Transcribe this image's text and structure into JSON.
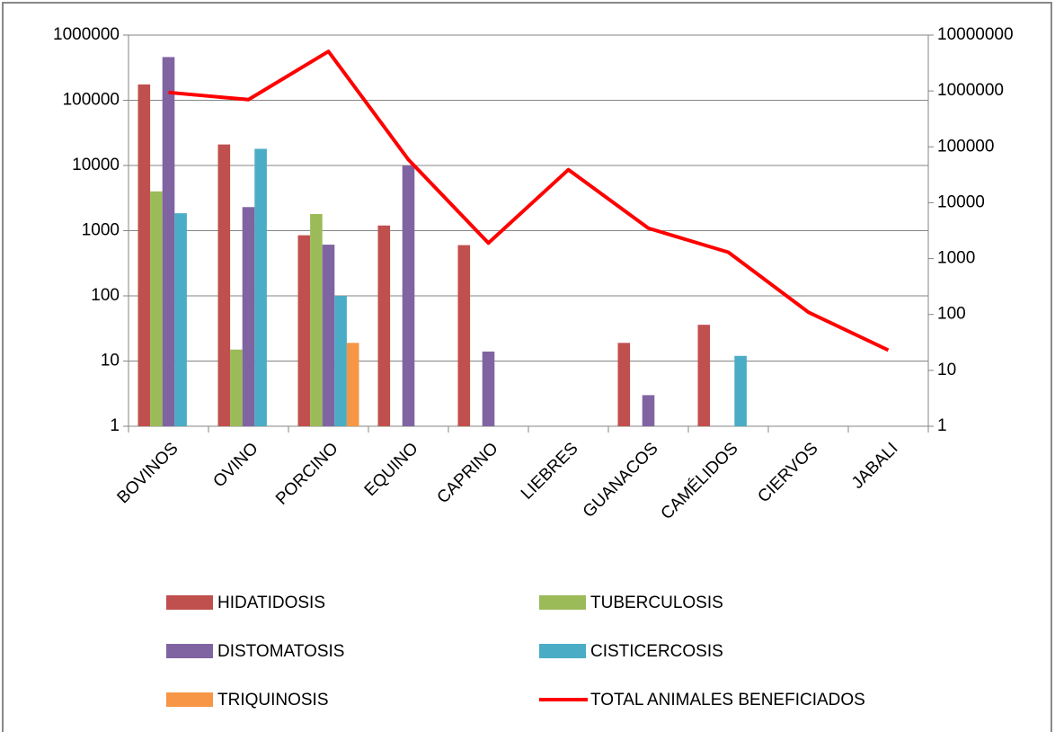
{
  "chart_data": {
    "type": "bar",
    "log_scale": true,
    "grid": true,
    "categories": [
      "BOVINOS",
      "OVINO",
      "PORCINO",
      "EQUINO",
      "CAPRINO",
      "LIEBRES",
      "GUANACOS",
      "CAMÉLIDOS",
      "CIERVOS",
      "JABALI"
    ],
    "series": [
      {
        "name": "HIDATIDOSIS",
        "color": "#C0504D",
        "values": [
          175000,
          21000,
          850,
          1200,
          600,
          null,
          19,
          36,
          null,
          null
        ]
      },
      {
        "name": "TUBERCULOSIS",
        "color": "#9BBB59",
        "values": [
          4000,
          15,
          1800,
          null,
          null,
          null,
          null,
          null,
          null,
          null
        ]
      },
      {
        "name": "DISTOMATOSIS",
        "color": "#8064A2",
        "values": [
          460000,
          2300,
          610,
          10000,
          14,
          null,
          3,
          null,
          null,
          null
        ]
      },
      {
        "name": "CISTICERCOSIS",
        "color": "#4BACC6",
        "values": [
          1850,
          18000,
          100,
          null,
          null,
          null,
          null,
          12,
          null,
          null
        ]
      },
      {
        "name": "TRIQUINOSIS",
        "color": "#F79646",
        "values": [
          null,
          null,
          19,
          null,
          null,
          null,
          null,
          null,
          null,
          null
        ]
      },
      {
        "name": "TOTAL ANIMALES BENEFICIADOS",
        "color": "#FF0000",
        "type": "line",
        "axis": "y2",
        "values": [
          940000,
          700000,
          5100000,
          59000,
          1900,
          39000,
          3500,
          1300,
          110,
          23
        ]
      }
    ],
    "ylim": [
      1,
      1000000
    ],
    "yticks": [
      1,
      10,
      100,
      1000,
      10000,
      100000,
      1000000
    ],
    "y2lim": [
      1,
      10000000
    ],
    "y2ticks": [
      1,
      10,
      100,
      1000,
      10000,
      100000,
      1000000,
      10000000
    ]
  }
}
